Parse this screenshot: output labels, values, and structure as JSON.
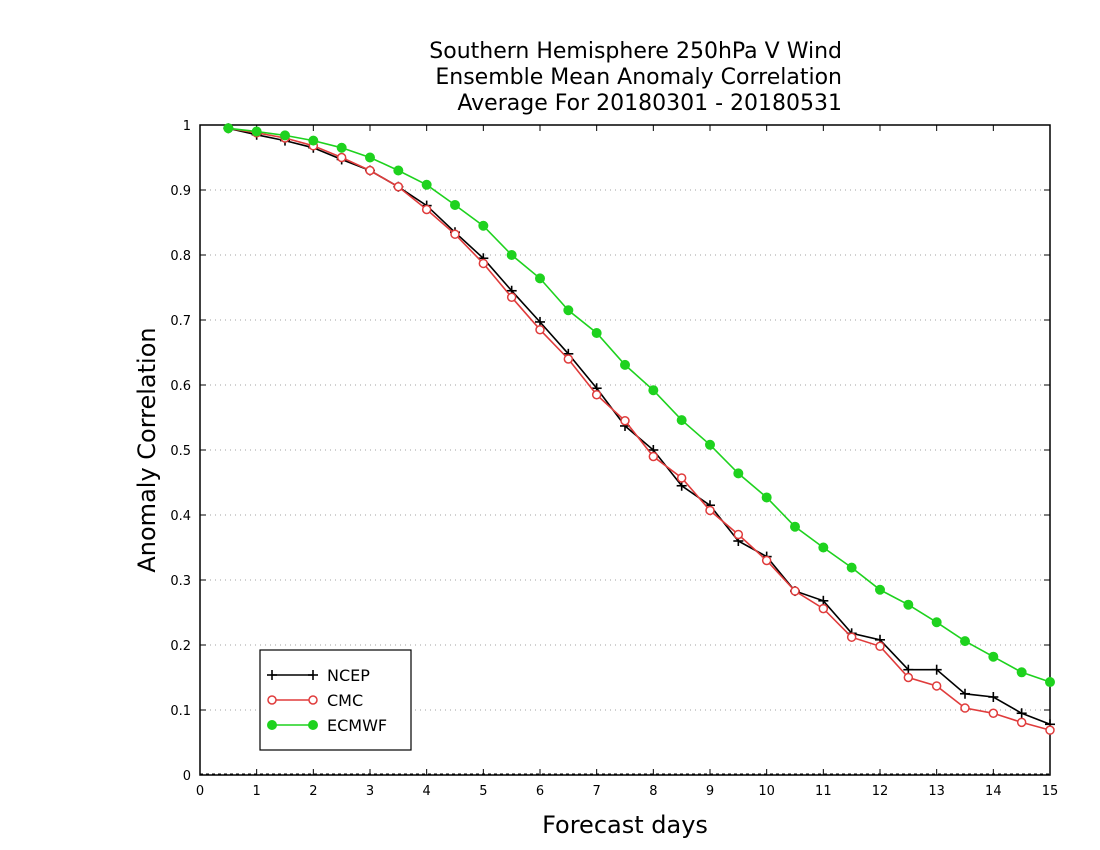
{
  "chart_data": {
    "type": "line",
    "title": [
      "Southern Hemisphere 250hPa V Wind",
      "Ensemble Mean Anomaly Correlation",
      "Average For 20180301 - 20180531"
    ],
    "xlabel": "Forecast days",
    "ylabel": "Anomaly Correlation",
    "xlim": [
      0,
      15
    ],
    "ylim": [
      0,
      1
    ],
    "xticks": [
      "0",
      "1",
      "2",
      "3",
      "4",
      "5",
      "6",
      "7",
      "8",
      "9",
      "10",
      "11",
      "12",
      "13",
      "14",
      "15"
    ],
    "yticks": [
      "0",
      "0.1",
      "0.2",
      "0.3",
      "0.4",
      "0.5",
      "0.6",
      "0.7",
      "0.8",
      "0.9",
      "1"
    ],
    "grid": true,
    "legend_position": "bottom-left",
    "x": [
      0.5,
      1,
      1.5,
      2,
      2.5,
      3,
      3.5,
      4,
      4.5,
      5,
      5.5,
      6,
      6.5,
      7,
      7.5,
      8,
      8.5,
      9,
      9.5,
      10,
      10.5,
      11,
      11.5,
      12,
      12.5,
      13,
      13.5,
      14,
      14.5,
      15
    ],
    "series": [
      {
        "name": "NCEP",
        "color": "#000000",
        "marker": "plus",
        "values": [
          0.995,
          0.985,
          0.976,
          0.965,
          0.947,
          0.93,
          0.905,
          0.876,
          0.835,
          0.795,
          0.745,
          0.697,
          0.648,
          0.595,
          0.537,
          0.5,
          0.445,
          0.415,
          0.36,
          0.336,
          0.283,
          0.268,
          0.218,
          0.208,
          0.162,
          0.162,
          0.125,
          0.12,
          0.095,
          0.078
        ]
      },
      {
        "name": "CMC",
        "color": "#e03c3c",
        "marker": "open-circle",
        "values": [
          0.995,
          0.988,
          0.98,
          0.968,
          0.95,
          0.93,
          0.905,
          0.87,
          0.832,
          0.787,
          0.735,
          0.685,
          0.64,
          0.585,
          0.545,
          0.49,
          0.457,
          0.407,
          0.37,
          0.33,
          0.283,
          0.256,
          0.212,
          0.198,
          0.15,
          0.137,
          0.103,
          0.095,
          0.081,
          0.069
        ]
      },
      {
        "name": "ECMWF",
        "color": "#1ed21e",
        "marker": "filled-circle",
        "values": [
          0.995,
          0.99,
          0.984,
          0.976,
          0.965,
          0.95,
          0.93,
          0.908,
          0.877,
          0.845,
          0.8,
          0.764,
          0.715,
          0.68,
          0.631,
          0.592,
          0.546,
          0.508,
          0.464,
          0.427,
          0.382,
          0.35,
          0.319,
          0.285,
          0.262,
          0.235,
          0.206,
          0.182,
          0.158,
          0.143
        ]
      }
    ]
  }
}
